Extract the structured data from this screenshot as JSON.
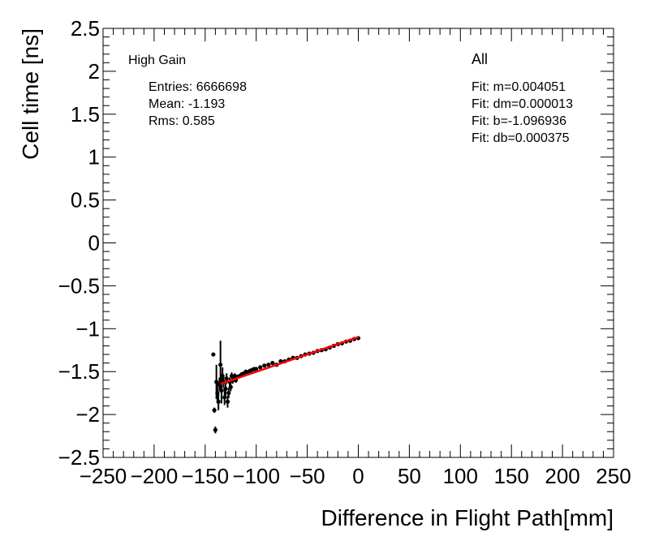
{
  "chart_data": {
    "type": "scatter",
    "title": "",
    "xlabel": "Difference in Flight Path[mm]",
    "ylabel": "Cell time [ns]",
    "xlim": [
      -250,
      250
    ],
    "ylim": [
      -2.5,
      2.5
    ],
    "x_ticks": [
      -250,
      -200,
      -150,
      -100,
      -50,
      0,
      50,
      100,
      150,
      200,
      250
    ],
    "x_tick_labels": [
      "−250",
      "−200",
      "−150",
      "−100",
      "−50",
      "0",
      "50",
      "100",
      "150",
      "200",
      "250"
    ],
    "y_ticks": [
      -2.5,
      -2,
      -1.5,
      -1,
      -0.5,
      0,
      0.5,
      1,
      1.5,
      2,
      2.5
    ],
    "y_tick_labels": [
      "−2.5",
      "−2",
      "−1.5",
      "−1",
      "−0.5",
      "0",
      "0.5",
      "1",
      "1.5",
      "2",
      "2.5"
    ],
    "grid": false,
    "series": [
      {
        "color": "#000000",
        "marker": "circle",
        "x": [
          -142,
          -141,
          -140,
          -139,
          -138,
          -137,
          -136,
          -135,
          -134,
          -133,
          -132,
          -131,
          -130,
          -129,
          -128,
          -127,
          -126,
          -125,
          -124,
          -123,
          -122,
          -121,
          -120,
          -118,
          -116,
          -114,
          -112,
          -110,
          -108,
          -106,
          -104,
          -102,
          -100,
          -96,
          -92,
          -88,
          -84,
          -80,
          -76,
          -72,
          -68,
          -64,
          -60,
          -56,
          -52,
          -48,
          -44,
          -40,
          -36,
          -32,
          -28,
          -24,
          -20,
          -16,
          -12,
          -8,
          -4,
          0
        ],
        "y": [
          -1.3,
          -1.95,
          -2.18,
          -1.62,
          -1.75,
          -1.85,
          -1.65,
          -1.42,
          -1.72,
          -1.55,
          -1.62,
          -1.8,
          -1.7,
          -1.58,
          -1.85,
          -1.75,
          -1.62,
          -1.68,
          -1.55,
          -1.6,
          -1.58,
          -1.55,
          -1.6,
          -1.56,
          -1.55,
          -1.53,
          -1.52,
          -1.5,
          -1.51,
          -1.49,
          -1.48,
          -1.47,
          -1.47,
          -1.45,
          -1.43,
          -1.42,
          -1.4,
          -1.42,
          -1.38,
          -1.38,
          -1.36,
          -1.34,
          -1.34,
          -1.32,
          -1.3,
          -1.29,
          -1.28,
          -1.26,
          -1.25,
          -1.24,
          -1.22,
          -1.2,
          -1.18,
          -1.17,
          -1.15,
          -1.14,
          -1.12,
          -1.11
        ],
        "yerr": [
          0.02,
          0.03,
          0.04,
          0.2,
          0.12,
          0.1,
          0.08,
          0.28,
          0.15,
          0.1,
          0.07,
          0.09,
          0.08,
          0.06,
          0.07,
          0.06,
          0.05,
          0.05,
          0.04,
          0.04,
          0.03,
          0.03,
          0.03,
          0.02,
          0.02,
          0.02,
          0.02,
          0.015,
          0.015,
          0.015,
          0.012,
          0.012,
          0.01,
          0.01,
          0.01,
          0.008,
          0.008,
          0.008,
          0.007,
          0.007,
          0.006,
          0.006,
          0.006,
          0.005,
          0.005,
          0.005,
          0.005,
          0.004,
          0.004,
          0.004,
          0.004,
          0.004,
          0.004,
          0.004,
          0.004,
          0.004,
          0.004,
          0.004
        ]
      },
      {
        "type": "line",
        "color": "#ff0000",
        "x": [
          -135,
          0
        ],
        "y": [
          -1.644,
          -1.097
        ]
      }
    ]
  },
  "stats": {
    "title": "High Gain",
    "entries": "Entries: 6666698",
    "mean": "Mean: -1.193",
    "rms": "Rms: 0.585"
  },
  "fit": {
    "title": "All",
    "m": "Fit: m=0.004051",
    "dm": "Fit: dm=0.000013",
    "b": "Fit: b=-1.096936",
    "db": "Fit: db=0.000375"
  }
}
